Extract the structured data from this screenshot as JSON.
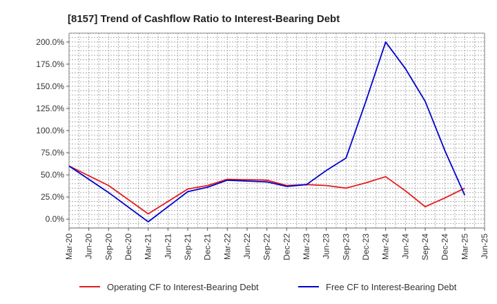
{
  "chart_data": {
    "type": "line",
    "title": "[8157]  Trend of Cashflow Ratio to Interest-Bearing Debt",
    "xlabel": "",
    "ylabel": "",
    "ylim": [
      -10,
      210
    ],
    "yticks": [
      0,
      25,
      50,
      75,
      100,
      125,
      150,
      175,
      200
    ],
    "ytick_labels": [
      "0.0%",
      "25.0%",
      "50.0%",
      "75.0%",
      "100.0%",
      "125.0%",
      "150.0%",
      "175.0%",
      "200.0%"
    ],
    "categories": [
      "Mar-20",
      "Jun-20",
      "Sep-20",
      "Dec-20",
      "Mar-21",
      "Jun-21",
      "Sep-21",
      "Dec-21",
      "Mar-22",
      "Jun-22",
      "Sep-22",
      "Dec-22",
      "Mar-23",
      "Jun-23",
      "Sep-23",
      "Dec-23",
      "Mar-24",
      "Jun-24",
      "Sep-24",
      "Dec-24",
      "Mar-25",
      "Jun-25"
    ],
    "grid": true,
    "legend_position": "bottom",
    "series": [
      {
        "name": "Operating CF to Interest-Bearing Debt",
        "color": "#e41a1c",
        "points": [
          {
            "x": "Mar-20",
            "y": 60
          },
          {
            "x": "Sep-20",
            "y": 38
          },
          {
            "x": "Mar-21",
            "y": 6
          },
          {
            "x": "Sep-21",
            "y": 34
          },
          {
            "x": "Dec-21",
            "y": 38
          },
          {
            "x": "Mar-22",
            "y": 45
          },
          {
            "x": "Sep-22",
            "y": 44
          },
          {
            "x": "Dec-22",
            "y": 38
          },
          {
            "x": "Mar-23",
            "y": 39
          },
          {
            "x": "Jun-23",
            "y": 38
          },
          {
            "x": "Sep-23",
            "y": 35
          },
          {
            "x": "Dec-23",
            "y": 41
          },
          {
            "x": "Mar-24",
            "y": 48
          },
          {
            "x": "Jun-24",
            "y": 32
          },
          {
            "x": "Sep-24",
            "y": 14
          },
          {
            "x": "Dec-24",
            "y": 24
          },
          {
            "x": "Mar-25",
            "y": 35
          }
        ]
      },
      {
        "name": "Free CF to Interest-Bearing Debt",
        "color": "#0000cc",
        "points": [
          {
            "x": "Mar-20",
            "y": 60
          },
          {
            "x": "Sep-20",
            "y": 30
          },
          {
            "x": "Mar-21",
            "y": -3
          },
          {
            "x": "Sep-21",
            "y": 31
          },
          {
            "x": "Dec-21",
            "y": 36
          },
          {
            "x": "Mar-22",
            "y": 44
          },
          {
            "x": "Sep-22",
            "y": 42
          },
          {
            "x": "Dec-22",
            "y": 37
          },
          {
            "x": "Mar-23",
            "y": 39
          },
          {
            "x": "Jun-23",
            "y": 55
          },
          {
            "x": "Sep-23",
            "y": 69
          },
          {
            "x": "Dec-23",
            "y": 133
          },
          {
            "x": "Mar-24",
            "y": 200
          },
          {
            "x": "Jun-24",
            "y": 170
          },
          {
            "x": "Sep-24",
            "y": 133
          },
          {
            "x": "Dec-24",
            "y": 77
          },
          {
            "x": "Mar-25",
            "y": 27
          }
        ]
      }
    ]
  }
}
